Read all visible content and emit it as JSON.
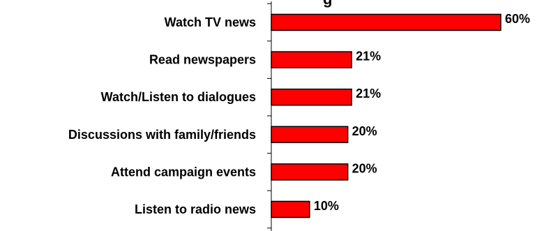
{
  "chart_data": {
    "type": "bar",
    "orientation": "horizontal",
    "categories": [
      "Watch TV news",
      "Read newspapers",
      "Watch/Listen to dialogues",
      "Discussions with family/friends",
      "Attend campaign events",
      "Listen to radio news"
    ],
    "values": [
      60,
      21,
      21,
      20,
      20,
      10
    ],
    "value_labels": [
      "60%",
      "21%",
      "21%",
      "20%",
      "20%",
      "10%"
    ],
    "title_fragment": "g",
    "xlim": [
      0,
      60
    ],
    "grid": false,
    "legend": "none",
    "bar_color": "#ff0000",
    "bar_edge_color": "#000000"
  }
}
